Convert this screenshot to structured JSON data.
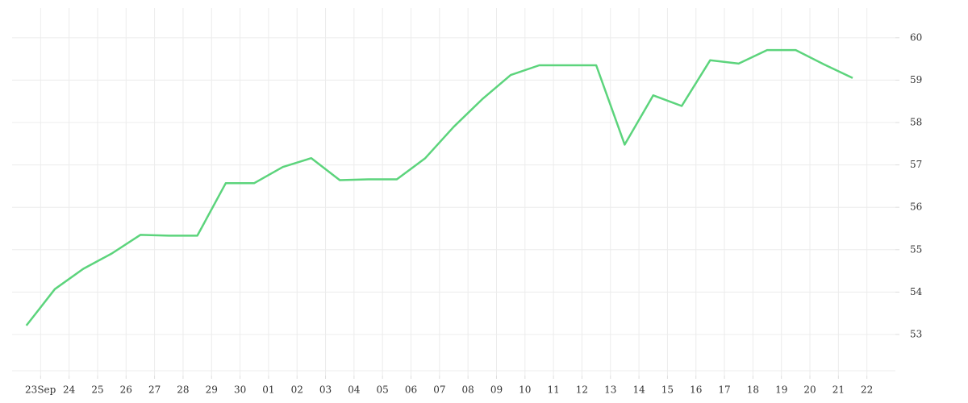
{
  "chart_data": {
    "type": "line",
    "x": [
      -0.5,
      0.5,
      1.5,
      2.5,
      3.5,
      4.5,
      5.5,
      6.5,
      7.5,
      8.5,
      9.5,
      10.5,
      11.5,
      12.5,
      13.5,
      14.5,
      15.5,
      16.5,
      17.5,
      18.5,
      19.5,
      20.5,
      21.5,
      22.5,
      23.5,
      24.5,
      25.5,
      26.5,
      27.5,
      28.5
    ],
    "values": [
      53.21,
      54.07,
      54.55,
      54.91,
      55.35,
      55.33,
      55.33,
      56.57,
      56.57,
      56.95,
      57.16,
      56.64,
      56.66,
      56.66,
      57.16,
      57.9,
      58.55,
      59.12,
      59.35,
      59.35,
      59.35,
      57.48,
      58.64,
      58.39,
      59.47,
      59.39,
      59.71,
      59.71,
      59.37,
      59.05
    ],
    "color": "#5cd47c",
    "xlim": [
      -1,
      30
    ],
    "xticks": [
      {
        "value": 0,
        "label": "23"
      },
      {
        "value": 1,
        "label": "24"
      },
      {
        "value": 2,
        "label": "25"
      },
      {
        "value": 3,
        "label": "26"
      },
      {
        "value": 4,
        "label": "27"
      },
      {
        "value": 5,
        "label": "28"
      },
      {
        "value": 6,
        "label": "29"
      },
      {
        "value": 7,
        "label": "30"
      },
      {
        "value": 8,
        "label": "01"
      },
      {
        "value": 9,
        "label": "02"
      },
      {
        "value": 10,
        "label": "03"
      },
      {
        "value": 11,
        "label": "04"
      },
      {
        "value": 12,
        "label": "05"
      },
      {
        "value": 13,
        "label": "06"
      },
      {
        "value": 14,
        "label": "07"
      },
      {
        "value": 15,
        "label": "08"
      },
      {
        "value": 16,
        "label": "09"
      },
      {
        "value": 17,
        "label": "10"
      },
      {
        "value": 18,
        "label": "11"
      },
      {
        "value": 19,
        "label": "12"
      },
      {
        "value": 20,
        "label": "13"
      },
      {
        "value": 21,
        "label": "14"
      },
      {
        "value": 22,
        "label": "15"
      },
      {
        "value": 23,
        "label": "16"
      },
      {
        "value": 24,
        "label": "17"
      },
      {
        "value": 25,
        "label": "18"
      },
      {
        "value": 26,
        "label": "19"
      },
      {
        "value": 27,
        "label": "20"
      },
      {
        "value": 28,
        "label": "21"
      },
      {
        "value": 29,
        "label": "22"
      }
    ],
    "x_month_label": "Sep",
    "ylim": [
      52.03,
      60.7
    ],
    "yticks": [
      53,
      54,
      55,
      56,
      57,
      58,
      59,
      60
    ],
    "grid": true
  }
}
